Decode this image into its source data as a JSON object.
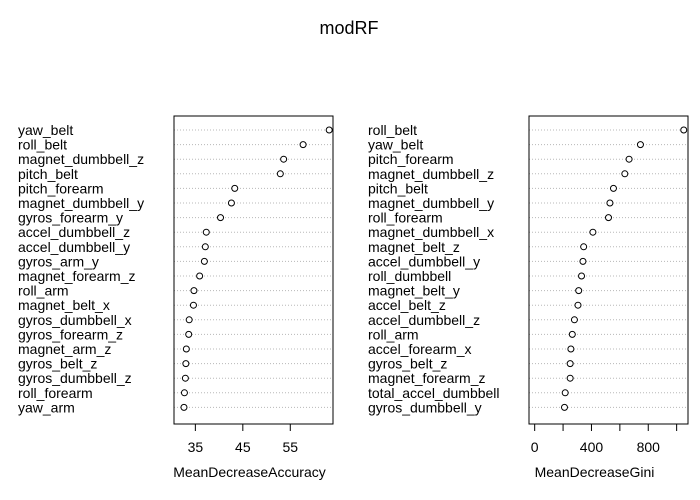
{
  "title": "modRF",
  "chart_data": [
    {
      "type": "scatter",
      "xlabel": "MeanDecreaseAccuracy",
      "ylabel": "",
      "xlim": [
        30.5,
        64
      ],
      "xticks": [
        "35",
        "45",
        "55"
      ],
      "xtick_values": [
        35,
        45,
        55
      ],
      "grid": true,
      "categories": [
        "yaw_belt",
        "roll_belt",
        "magnet_dumbbell_z",
        "pitch_belt",
        "pitch_forearm",
        "magnet_dumbbell_y",
        "gyros_forearm_y",
        "accel_dumbbell_z",
        "accel_dumbbell_y",
        "gyros_arm_y",
        "magnet_forearm_z",
        "roll_arm",
        "magnet_belt_x",
        "gyros_dumbbell_x",
        "gyros_forearm_z",
        "magnet_arm_z",
        "gyros_belt_z",
        "gyros_dumbbell_z",
        "roll_forearm",
        "yaw_arm"
      ],
      "values": [
        63.2,
        57.7,
        53.6,
        52.9,
        43.3,
        42.6,
        40.3,
        37.3,
        37.1,
        36.9,
        35.9,
        34.7,
        34.6,
        33.7,
        33.6,
        33.1,
        33.0,
        32.9,
        32.7,
        32.6
      ]
    },
    {
      "type": "scatter",
      "xlabel": "MeanDecreaseGini",
      "ylabel": "",
      "xlim": [
        -40,
        1080
      ],
      "xticks": [
        "0",
        "400",
        "800"
      ],
      "xtick_values": [
        0,
        400,
        800
      ],
      "extra_tick_values": [
        200,
        600,
        1000
      ],
      "grid": true,
      "categories": [
        "roll_belt",
        "yaw_belt",
        "pitch_forearm",
        "magnet_dumbbell_z",
        "pitch_belt",
        "magnet_dumbbell_y",
        "roll_forearm",
        "magnet_dumbbell_x",
        "magnet_belt_z",
        "accel_dumbbell_y",
        "roll_dumbbell",
        "magnet_belt_y",
        "accel_belt_z",
        "accel_dumbbell_z",
        "roll_arm",
        "accel_forearm_x",
        "gyros_belt_z",
        "magnet_forearm_z",
        "total_accel_dumbbell",
        "gyros_dumbbell_y"
      ],
      "values": [
        1050,
        745,
        665,
        635,
        555,
        530,
        520,
        410,
        345,
        340,
        330,
        310,
        305,
        280,
        265,
        255,
        250,
        250,
        215,
        210
      ]
    }
  ]
}
